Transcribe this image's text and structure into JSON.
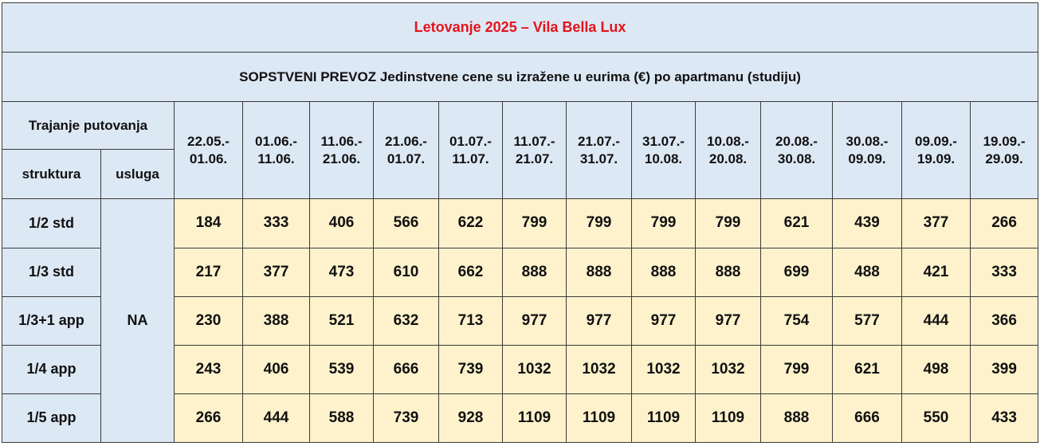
{
  "title": "Letovanje 2025 – Vila Bella Lux",
  "subtitle": "SOPSTVENI PREVOZ Jedinstvene cene su izražene u eurima (€) po apartmanu (studiju)",
  "header": {
    "duration_label": "Trajanje putovanja",
    "structure_label": "struktura",
    "service_label": "usluga"
  },
  "periods": [
    {
      "start": "22.05.-",
      "end": "01.06."
    },
    {
      "start": "01.06.-",
      "end": "11.06."
    },
    {
      "start": "11.06.-",
      "end": "21.06."
    },
    {
      "start": "21.06.-",
      "end": "01.07."
    },
    {
      "start": "01.07.-",
      "end": "11.07."
    },
    {
      "start": "11.07.-",
      "end": "21.07."
    },
    {
      "start": "21.07.-",
      "end": "31.07."
    },
    {
      "start": "31.07.-",
      "end": "10.08."
    },
    {
      "start": "10.08.-",
      "end": "20.08."
    },
    {
      "start": "20.08.-",
      "end": "30.08."
    },
    {
      "start": "30.08.-",
      "end": "09.09."
    },
    {
      "start": "09.09.-",
      "end": "19.09."
    },
    {
      "start": "19.09.-",
      "end": "29.09."
    }
  ],
  "service": "NA",
  "rows": [
    {
      "structure": "1/2 std",
      "prices": [
        "184",
        "333",
        "406",
        "566",
        "622",
        "799",
        "799",
        "799",
        "799",
        "621",
        "439",
        "377",
        "266"
      ]
    },
    {
      "structure": "1/3 std",
      "prices": [
        "217",
        "377",
        "473",
        "610",
        "662",
        "888",
        "888",
        "888",
        "888",
        "699",
        "488",
        "421",
        "333"
      ]
    },
    {
      "structure": "1/3+1 app",
      "prices": [
        "230",
        "388",
        "521",
        "632",
        "713",
        "977",
        "977",
        "977",
        "977",
        "754",
        "577",
        "444",
        "366"
      ]
    },
    {
      "structure": "1/4 app",
      "prices": [
        "243",
        "406",
        "539",
        "666",
        "739",
        "1032",
        "1032",
        "1032",
        "1032",
        "799",
        "621",
        "498",
        "399"
      ]
    },
    {
      "structure": "1/5 app",
      "prices": [
        "266",
        "444",
        "588",
        "739",
        "928",
        "1109",
        "1109",
        "1109",
        "1109",
        "888",
        "666",
        "550",
        "433"
      ]
    }
  ],
  "colors": {
    "title": "#e3141b",
    "header_bg": "#dde8f5",
    "cell_bg": "#fef2cc",
    "border": "#3a3a3a"
  }
}
